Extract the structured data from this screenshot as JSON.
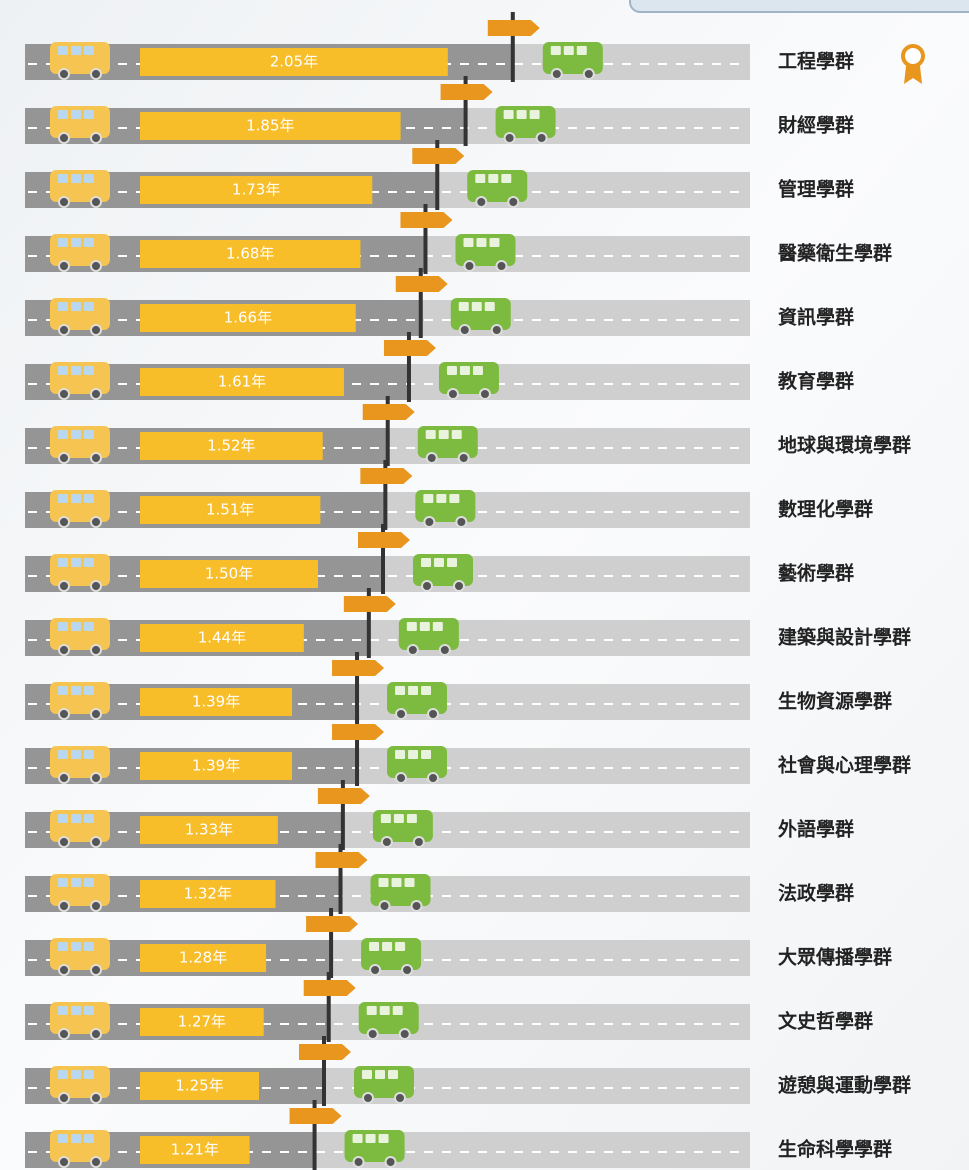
{
  "chart_data": {
    "type": "bar",
    "categories": [
      "工程學群",
      "財經學群",
      "管理學群",
      "醫藥衛生學群",
      "資訊學群",
      "教育學群",
      "地球與環境學群",
      "數理化學群",
      "藝術學群",
      "建築與設計學群",
      "生物資源學群",
      "社會與心理學群",
      "外語學群",
      "法政學群",
      "大眾傳播學群",
      "文史哲學群",
      "遊憩與運動學群",
      "生命科學學群"
    ],
    "values": [
      2.05,
      1.85,
      1.73,
      1.68,
      1.66,
      1.61,
      1.52,
      1.51,
      1.5,
      1.44,
      1.39,
      1.39,
      1.33,
      1.32,
      1.28,
      1.27,
      1.25,
      1.21
    ],
    "value_labels": [
      "2.05年",
      "1.85年",
      "1.73年",
      "1.68年",
      "1.66年",
      "1.61年",
      "1.52年",
      "1.51年",
      "1.50年",
      "1.44年",
      "1.39年",
      "1.39年",
      "1.33年",
      "1.32年",
      "1.28年",
      "1.27年",
      "1.25年",
      "1.21年"
    ],
    "color": "#f7be2a"
  }
}
